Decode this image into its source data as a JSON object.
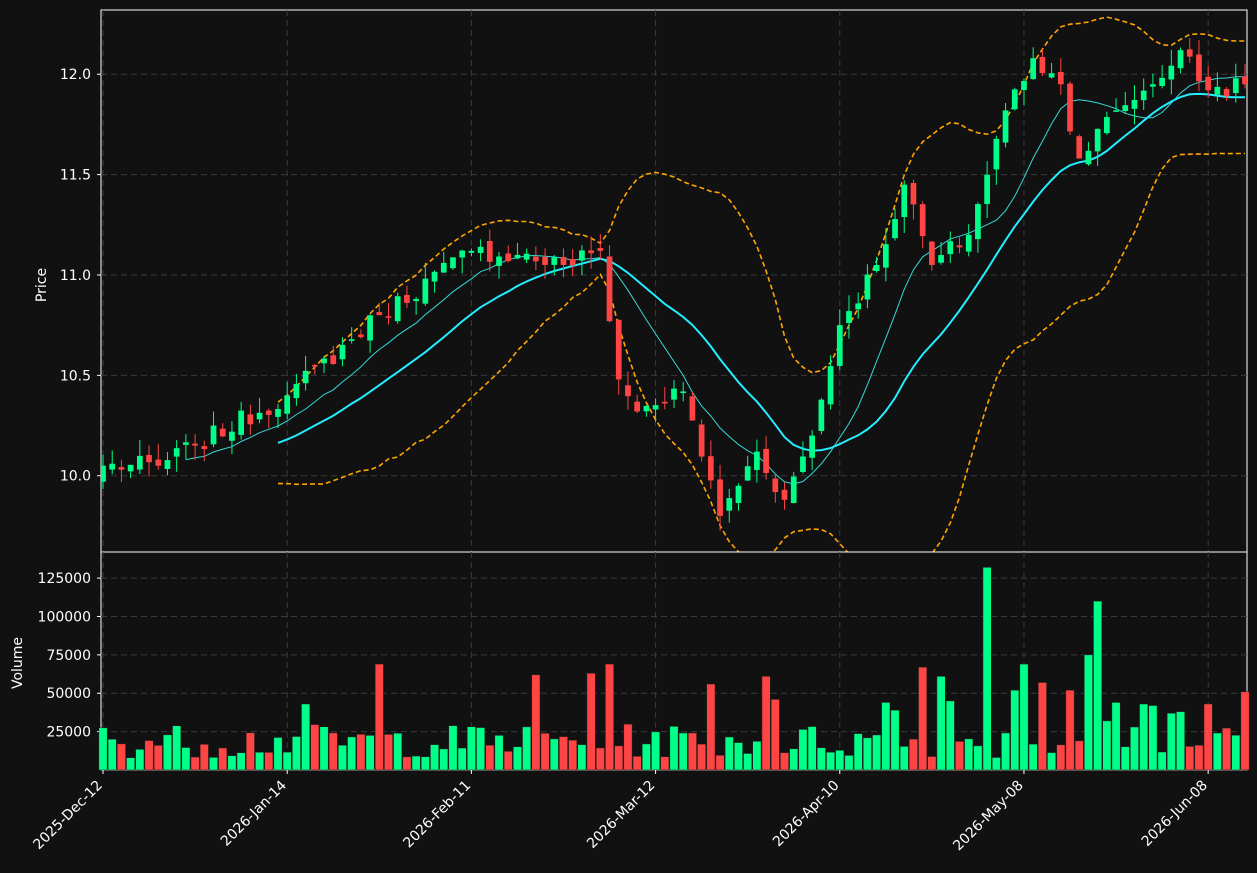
{
  "chart_data": {
    "type": "candlestick",
    "style": {
      "background": "#111111",
      "up_color": "#00ff88",
      "down_color": "#ff4444",
      "ma_short_color": "#36d8d8",
      "ma_long_color": "#22eeff",
      "band_color": "#ffa500",
      "grid": true
    },
    "x_ticks": [
      "2025-Dec-12",
      "2026-Jan-14",
      "2026-Feb-11",
      "2026-Mar-12",
      "2026-Apr-10",
      "2026-May-08",
      "2026-Jun-08"
    ],
    "x_tick_index": [
      0,
      20,
      40,
      60,
      80,
      100,
      120
    ],
    "price_panel": {
      "ylabel": "Price",
      "yticks": [
        10.0,
        10.5,
        11.0,
        11.5,
        12.0
      ],
      "ylim": [
        9.62,
        12.32
      ]
    },
    "volume_panel": {
      "ylabel": "Volume",
      "yticks": [
        25000,
        50000,
        75000,
        100000,
        125000
      ],
      "ylim": [
        0,
        142000
      ]
    },
    "key_closes": [
      [
        0,
        10.05
      ],
      [
        6,
        10.05
      ],
      [
        10,
        10.15
      ],
      [
        20,
        10.4
      ],
      [
        30,
        10.8
      ],
      [
        40,
        11.12
      ],
      [
        45,
        11.1
      ],
      [
        50,
        11.05
      ],
      [
        54,
        11.12
      ],
      [
        56,
        10.48
      ],
      [
        58,
        10.32
      ],
      [
        63,
        10.42
      ],
      [
        67,
        9.8
      ],
      [
        71,
        10.12
      ],
      [
        74,
        9.88
      ],
      [
        77,
        10.2
      ],
      [
        80,
        10.75
      ],
      [
        84,
        11.05
      ],
      [
        87,
        11.45
      ],
      [
        90,
        11.05
      ],
      [
        94,
        11.2
      ],
      [
        98,
        11.82
      ],
      [
        101,
        12.08
      ],
      [
        104,
        11.95
      ],
      [
        106,
        11.58
      ],
      [
        110,
        11.82
      ],
      [
        114,
        11.95
      ],
      [
        117,
        12.12
      ],
      [
        120,
        11.92
      ],
      [
        124,
        11.95
      ]
    ],
    "big_volume": {
      "22": 43000,
      "30": 69000,
      "47": 62000,
      "53": 63000,
      "55": 69000,
      "66": 56000,
      "72": 61000,
      "73": 46000,
      "85": 44000,
      "86": 39000,
      "89": 67000,
      "91": 61000,
      "92": 45000,
      "96": 132000,
      "99": 52000,
      "100": 69000,
      "102": 57000,
      "105": 52000,
      "107": 75000,
      "108": 110000,
      "109": 32000,
      "110": 44000,
      "112": 28000,
      "113": 43000,
      "114": 42000,
      "116": 37000,
      "117": 38000,
      "120": 43000,
      "124": 51000
    }
  }
}
